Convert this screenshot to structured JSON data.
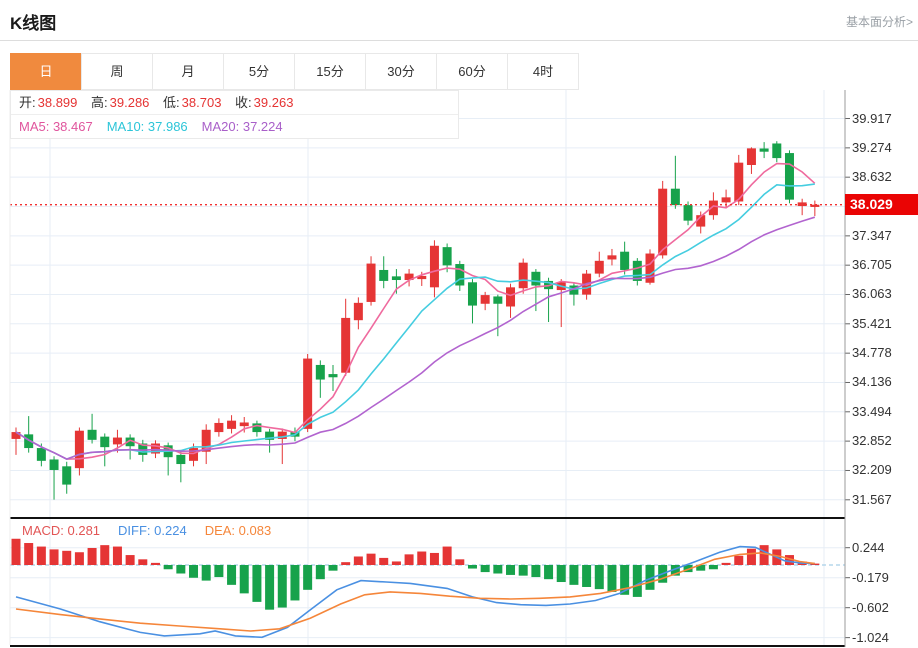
{
  "header": {
    "title": "K线图",
    "link": "基本面分析>"
  },
  "tabs": [
    {
      "label": "日",
      "active": true
    },
    {
      "label": "周",
      "active": false
    },
    {
      "label": "月",
      "active": false
    },
    {
      "label": "5分",
      "active": false
    },
    {
      "label": "15分",
      "active": false
    },
    {
      "label": "30分",
      "active": false
    },
    {
      "label": "60分",
      "active": false
    },
    {
      "label": "4时",
      "active": false
    }
  ],
  "legend_ohlc": [
    {
      "label": "开:",
      "value": "38.899"
    },
    {
      "label": "高:",
      "value": "39.286"
    },
    {
      "label": "低:",
      "value": "38.703"
    },
    {
      "label": "收:",
      "value": "39.263"
    }
  ],
  "legend_ma": [
    {
      "label": "MA5:",
      "value": "38.467",
      "color": "#e0559d"
    },
    {
      "label": "MA10:",
      "value": "37.986",
      "color": "#2cc5d8"
    },
    {
      "label": "MA20:",
      "value": "37.224",
      "color": "#a95fc9"
    }
  ],
  "legend_macd": [
    {
      "label": "MACD:",
      "value": "0.281",
      "color": "#e25555"
    },
    {
      "label": "DIFF:",
      "value": "0.224",
      "color": "#4a90e2"
    },
    {
      "label": "DEA:",
      "value": "0.083",
      "color": "#f5863a"
    }
  ],
  "colors": {
    "accent_orange": "#f08a3e",
    "up": "#e53535",
    "down": "#17a24b",
    "grid": "#e7eef6",
    "axis_line": "#9b9b9b",
    "tick": "#666666",
    "separator": "#111111",
    "price_line": "#f23030",
    "price_tag_bg": "#ea0404"
  },
  "chart_data": {
    "type": "candlestick",
    "title": "K线图",
    "legend_position": "top-left-overlay",
    "grid": true,
    "y_ticks": [
      {
        "v": 39.917,
        "label": "39.917"
      },
      {
        "v": 39.274,
        "label": "39.274"
      },
      {
        "v": 38.632,
        "label": "38.632"
      },
      {
        "v": 37.99,
        "label": null
      },
      {
        "v": 37.347,
        "label": "37.347"
      },
      {
        "v": 36.705,
        "label": "36.705"
      },
      {
        "v": 36.063,
        "label": "36.063"
      },
      {
        "v": 35.421,
        "label": "35.421"
      },
      {
        "v": 34.778,
        "label": "34.778"
      },
      {
        "v": 34.136,
        "label": "34.136"
      },
      {
        "v": 33.494,
        "label": "33.494"
      },
      {
        "v": 32.852,
        "label": "32.852"
      },
      {
        "v": 32.209,
        "label": "32.209"
      },
      {
        "v": 31.567,
        "label": "31.567"
      }
    ],
    "price_line": {
      "value": 38.029,
      "label": "38.029"
    },
    "up_color": "#e53535",
    "down_color": "#17a24b",
    "ma_lines": [
      {
        "n": 5,
        "color": "#ef6a9e"
      },
      {
        "n": 10,
        "color": "#45cde0"
      },
      {
        "n": 20,
        "color": "#b264cf"
      }
    ],
    "candles": [
      [
        32.9,
        33.15,
        32.55,
        33.05
      ],
      [
        33.0,
        33.4,
        32.6,
        32.7
      ],
      [
        32.7,
        32.8,
        32.3,
        32.42
      ],
      [
        32.45,
        32.52,
        31.57,
        32.22
      ],
      [
        32.3,
        32.4,
        31.7,
        31.9
      ],
      [
        32.26,
        33.15,
        32.1,
        33.08
      ],
      [
        33.1,
        33.45,
        32.8,
        32.88
      ],
      [
        32.95,
        33.02,
        32.3,
        32.72
      ],
      [
        32.78,
        33.1,
        32.6,
        32.93
      ],
      [
        32.93,
        33.0,
        32.45,
        32.74
      ],
      [
        32.8,
        32.88,
        32.4,
        32.55
      ],
      [
        32.58,
        32.87,
        32.48,
        32.8
      ],
      [
        32.76,
        32.82,
        32.1,
        32.5
      ],
      [
        32.55,
        32.64,
        31.95,
        32.35
      ],
      [
        32.42,
        32.8,
        32.3,
        32.7
      ],
      [
        32.62,
        33.22,
        32.35,
        33.1
      ],
      [
        33.05,
        33.35,
        32.95,
        33.25
      ],
      [
        33.12,
        33.42,
        33.02,
        33.3
      ],
      [
        33.18,
        33.38,
        33.04,
        33.26
      ],
      [
        33.24,
        33.3,
        32.95,
        33.05
      ],
      [
        33.06,
        33.12,
        32.6,
        32.88
      ],
      [
        32.9,
        33.13,
        32.35,
        33.06
      ],
      [
        33.06,
        33.15,
        32.85,
        32.95
      ],
      [
        33.12,
        34.76,
        33.05,
        34.66
      ],
      [
        34.52,
        34.62,
        33.8,
        34.2
      ],
      [
        34.32,
        34.52,
        33.95,
        34.25
      ],
      [
        34.35,
        35.97,
        34.28,
        35.55
      ],
      [
        35.5,
        36.0,
        35.3,
        35.88
      ],
      [
        35.9,
        36.9,
        35.82,
        36.74
      ],
      [
        36.6,
        36.9,
        36.2,
        36.36
      ],
      [
        36.46,
        36.62,
        36.08,
        36.38
      ],
      [
        36.38,
        36.62,
        36.24,
        36.52
      ],
      [
        36.4,
        36.56,
        36.25,
        36.47
      ],
      [
        36.22,
        37.25,
        36.0,
        37.13
      ],
      [
        37.1,
        37.18,
        36.55,
        36.7
      ],
      [
        36.73,
        36.8,
        36.14,
        36.26
      ],
      [
        36.33,
        36.4,
        35.43,
        35.82
      ],
      [
        35.86,
        36.12,
        35.72,
        36.05
      ],
      [
        36.02,
        36.06,
        35.15,
        35.86
      ],
      [
        35.8,
        36.3,
        35.55,
        36.22
      ],
      [
        36.2,
        36.85,
        36.08,
        36.76
      ],
      [
        36.56,
        36.62,
        35.7,
        36.26
      ],
      [
        36.36,
        36.43,
        35.46,
        36.18
      ],
      [
        36.16,
        36.4,
        35.35,
        36.33
      ],
      [
        36.26,
        36.33,
        35.82,
        36.06
      ],
      [
        36.06,
        36.6,
        35.95,
        36.52
      ],
      [
        36.52,
        37.0,
        36.44,
        36.8
      ],
      [
        36.83,
        37.06,
        36.7,
        36.92
      ],
      [
        37.0,
        37.22,
        36.5,
        36.6
      ],
      [
        36.8,
        36.86,
        36.26,
        36.36
      ],
      [
        36.32,
        37.05,
        36.28,
        36.96
      ],
      [
        36.92,
        38.55,
        36.85,
        38.38
      ],
      [
        38.38,
        39.1,
        37.94,
        38.02
      ],
      [
        38.02,
        38.1,
        37.58,
        37.68
      ],
      [
        37.55,
        37.88,
        37.4,
        37.8
      ],
      [
        37.8,
        38.3,
        37.7,
        38.12
      ],
      [
        38.08,
        38.36,
        37.95,
        38.19
      ],
      [
        38.1,
        39.12,
        38.02,
        38.95
      ],
      [
        38.899,
        39.286,
        38.703,
        39.263
      ],
      [
        39.26,
        39.4,
        39.05,
        39.19
      ],
      [
        39.37,
        39.42,
        38.96,
        39.05
      ],
      [
        39.16,
        39.22,
        38.06,
        38.14
      ],
      [
        38.0,
        38.16,
        37.8,
        38.08
      ],
      [
        37.98,
        38.12,
        37.78,
        38.029
      ]
    ],
    "macd": {
      "values": {
        "macd": 0.281,
        "diff": 0.224,
        "dea": 0.083
      },
      "y_ticks": [
        {
          "v": 0.244,
          "label": "0.244"
        },
        {
          "v": -0.179,
          "label": "-0.179"
        },
        {
          "v": -0.602,
          "label": "-0.602"
        },
        {
          "v": -1.024,
          "label": "-1.024"
        }
      ],
      "zero_line_color": "#a8cfe8",
      "histogram": [
        0.37,
        0.31,
        0.26,
        0.22,
        0.2,
        0.18,
        0.24,
        0.28,
        0.26,
        0.14,
        0.08,
        0.03,
        -0.06,
        -0.12,
        -0.18,
        -0.22,
        -0.17,
        -0.28,
        -0.4,
        -0.52,
        -0.63,
        -0.6,
        -0.5,
        -0.35,
        -0.2,
        -0.08,
        0.04,
        0.12,
        0.16,
        0.1,
        0.05,
        0.15,
        0.19,
        0.17,
        0.26,
        0.08,
        -0.05,
        -0.1,
        -0.12,
        -0.14,
        -0.15,
        -0.17,
        -0.2,
        -0.24,
        -0.28,
        -0.31,
        -0.34,
        -0.38,
        -0.42,
        -0.45,
        -0.35,
        -0.25,
        -0.15,
        -0.1,
        -0.08,
        -0.06,
        0.03,
        0.13,
        0.23,
        0.28,
        0.22,
        0.14,
        0.05,
        0.02
      ],
      "diff_line": {
        "color": "#4a90e2",
        "points": [
          [
            0,
            -0.45
          ],
          [
            3.5,
            -0.62
          ],
          [
            6.6,
            -0.8
          ],
          [
            9.8,
            -0.95
          ],
          [
            11.7,
            -1.0
          ],
          [
            14.5,
            -0.97
          ],
          [
            15.7,
            -0.93
          ],
          [
            17.3,
            -1.0
          ],
          [
            19.4,
            -1.02
          ],
          [
            21.4,
            -0.88
          ],
          [
            23.3,
            -0.62
          ],
          [
            25.3,
            -0.35
          ],
          [
            27.2,
            -0.22
          ],
          [
            29.2,
            -0.24
          ],
          [
            31.1,
            -0.26
          ],
          [
            34.0,
            -0.33
          ],
          [
            36.0,
            -0.45
          ],
          [
            37.9,
            -0.53
          ],
          [
            39.8,
            -0.56
          ],
          [
            41.8,
            -0.57
          ],
          [
            43.7,
            -0.55
          ],
          [
            45.7,
            -0.5
          ],
          [
            47.6,
            -0.4
          ],
          [
            49.6,
            -0.22
          ],
          [
            51.6,
            -0.08
          ],
          [
            53.6,
            0.05
          ],
          [
            55.5,
            0.18
          ],
          [
            57.1,
            0.26
          ],
          [
            58.3,
            0.25
          ],
          [
            59.5,
            0.15
          ],
          [
            60.6,
            0.06
          ],
          [
            61.8,
            0.03
          ],
          [
            63,
            0.02
          ]
        ]
      },
      "dea_line": {
        "color": "#f5863a",
        "points": [
          [
            0,
            -0.62
          ],
          [
            3.5,
            -0.7
          ],
          [
            6.6,
            -0.76
          ],
          [
            9.8,
            -0.82
          ],
          [
            12.9,
            -0.86
          ],
          [
            16.1,
            -0.9
          ],
          [
            18.5,
            -0.93
          ],
          [
            20.8,
            -0.9
          ],
          [
            23.2,
            -0.75
          ],
          [
            25.6,
            -0.55
          ],
          [
            27.5,
            -0.42
          ],
          [
            29.5,
            -0.38
          ],
          [
            31.9,
            -0.4
          ],
          [
            34.2,
            -0.44
          ],
          [
            36.6,
            -0.47
          ],
          [
            39.0,
            -0.48
          ],
          [
            41.3,
            -0.47
          ],
          [
            43.7,
            -0.45
          ],
          [
            46.1,
            -0.4
          ],
          [
            48.4,
            -0.32
          ],
          [
            50.8,
            -0.2
          ],
          [
            53.2,
            -0.05
          ],
          [
            55.1,
            0.08
          ],
          [
            57.1,
            0.15
          ],
          [
            58.7,
            0.17
          ],
          [
            60.3,
            0.12
          ],
          [
            61.8,
            0.05
          ],
          [
            63,
            0.02
          ]
        ]
      }
    }
  }
}
